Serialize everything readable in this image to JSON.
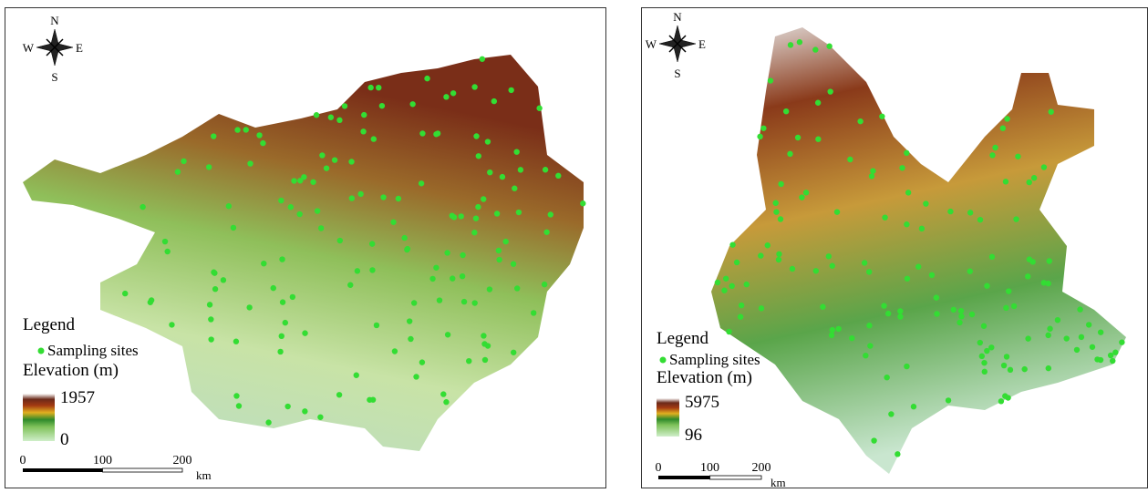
{
  "panels": [
    {
      "compass": {
        "n": "N",
        "w": "W",
        "e": "E",
        "s": "S"
      },
      "legend": {
        "title": "Legend",
        "sites": "Sampling sites",
        "elevation_title": "Elevation (m)",
        "max": 1957,
        "min": 0
      },
      "scale_bar": {
        "ticks": [
          0,
          100,
          200
        ],
        "unit": "km"
      }
    },
    {
      "compass": {
        "n": "N",
        "w": "W",
        "e": "E",
        "s": "S"
      },
      "legend": {
        "title": "Legend",
        "sites": "Sampling sites",
        "elevation_title": "Elevation (m)",
        "max": 5975,
        "min": 96
      },
      "scale_bar": {
        "ticks": [
          0,
          100,
          200
        ],
        "unit": "km"
      }
    }
  ]
}
